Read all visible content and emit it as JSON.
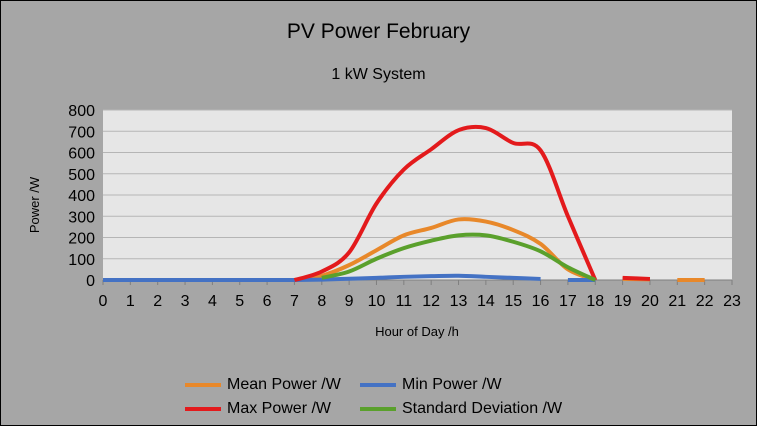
{
  "chart_data": {
    "type": "line",
    "title": "PV Power February",
    "subtitle": "1 kW System",
    "xlabel": "Hour of Day /h",
    "ylabel": "Power /W",
    "xlim": [
      0,
      23
    ],
    "ylim": [
      0,
      800
    ],
    "x_ticks": [
      "0",
      "1",
      "2",
      "3",
      "4",
      "5",
      "6",
      "7",
      "8",
      "9",
      "10",
      "11",
      "12",
      "13",
      "14",
      "15",
      "16",
      "17",
      "18",
      "19",
      "20",
      "21",
      "22",
      "23"
    ],
    "y_ticks": [
      "0",
      "100",
      "200",
      "300",
      "400",
      "500",
      "600",
      "700",
      "800"
    ],
    "grid": "horizontal",
    "legend_position": "bottom",
    "series": [
      {
        "name": "Mean Power /W",
        "color": "#e8882a",
        "segments": [
          [
            [
              0,
              0
            ],
            [
              1,
              0
            ],
            [
              2,
              0
            ],
            [
              3,
              0
            ],
            [
              4,
              0
            ],
            [
              5,
              0
            ],
            [
              6,
              0
            ],
            [
              7,
              0
            ],
            [
              8,
              20
            ],
            [
              9,
              70
            ],
            [
              10,
              140
            ],
            [
              11,
              210
            ],
            [
              12,
              245
            ],
            [
              13,
              285
            ],
            [
              14,
              275
            ],
            [
              15,
              235
            ],
            [
              16,
              170
            ],
            [
              17,
              50
            ],
            [
              18,
              0
            ]
          ],
          [
            [
              19,
              5
            ],
            [
              20,
              3
            ]
          ],
          [
            [
              21,
              0
            ],
            [
              22,
              0
            ]
          ]
        ]
      },
      {
        "name": "Min Power /W",
        "color": "#4472c4",
        "segments": [
          [
            [
              0,
              0
            ],
            [
              1,
              0
            ],
            [
              2,
              0
            ],
            [
              3,
              0
            ],
            [
              4,
              0
            ],
            [
              5,
              0
            ],
            [
              6,
              0
            ],
            [
              7,
              0
            ],
            [
              8,
              2
            ],
            [
              9,
              6
            ],
            [
              10,
              10
            ],
            [
              11,
              15
            ],
            [
              12,
              18
            ],
            [
              13,
              20
            ],
            [
              14,
              15
            ],
            [
              15,
              10
            ],
            [
              16,
              5
            ]
          ],
          [
            [
              17,
              0
            ],
            [
              18,
              0
            ]
          ]
        ]
      },
      {
        "name": "Max Power /W",
        "color": "#e31a1c",
        "segments": [
          [
            [
              7,
              0
            ],
            [
              8,
              40
            ],
            [
              9,
              130
            ],
            [
              10,
              360
            ],
            [
              11,
              520
            ],
            [
              12,
              615
            ],
            [
              13,
              705
            ],
            [
              14,
              715
            ],
            [
              15,
              645
            ],
            [
              16,
              610
            ],
            [
              17,
              300
            ],
            [
              18,
              0
            ]
          ],
          [
            [
              19,
              10
            ],
            [
              20,
              5
            ]
          ]
        ]
      },
      {
        "name": "Standard Deviation /W",
        "color": "#5aa02c",
        "segments": [
          [
            [
              8,
              10
            ],
            [
              9,
              40
            ],
            [
              10,
              100
            ],
            [
              11,
              150
            ],
            [
              12,
              185
            ],
            [
              13,
              210
            ],
            [
              14,
              210
            ],
            [
              15,
              180
            ],
            [
              16,
              135
            ],
            [
              17,
              60
            ],
            [
              18,
              0
            ]
          ]
        ]
      }
    ]
  }
}
